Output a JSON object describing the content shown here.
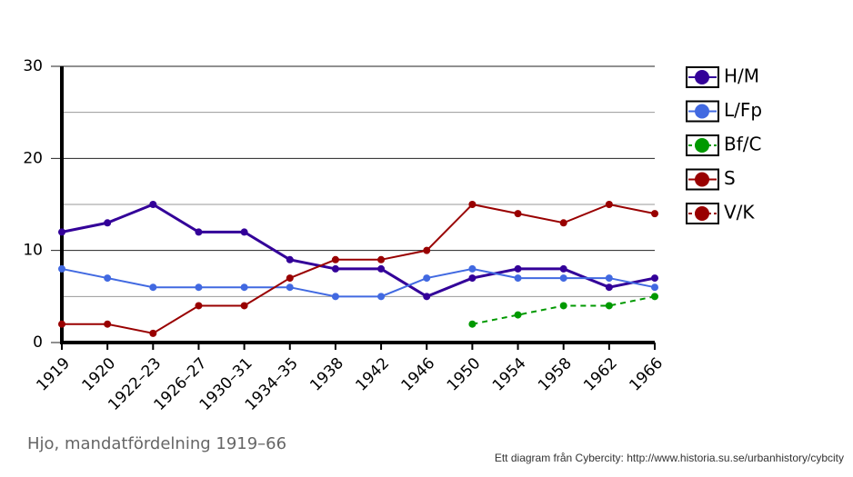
{
  "chart_data": {
    "type": "line",
    "title": "Hjo, mandatfördelning 1919–66",
    "source": "Ett diagram från Cybercity: http://www.historia.su.se/urbanhistory/cybcity",
    "categories": [
      "1919",
      "1920",
      "1922–23",
      "1926–27",
      "1930–31",
      "1934–35",
      "1938",
      "1942",
      "1946",
      "1950",
      "1954",
      "1958",
      "1962",
      "1966"
    ],
    "ylim": [
      0,
      30
    ],
    "yticks": [
      0,
      10,
      20,
      30
    ],
    "minor_yticks": [
      5,
      15,
      25
    ],
    "grid": true,
    "series": [
      {
        "name": "H/M",
        "color": "#330099",
        "dashed": false,
        "values": [
          12,
          13,
          15,
          12,
          12,
          9,
          8,
          8,
          5,
          7,
          8,
          8,
          6,
          7
        ]
      },
      {
        "name": "L/Fp",
        "color": "#4169e1",
        "dashed": false,
        "values": [
          8,
          7,
          6,
          6,
          6,
          6,
          5,
          5,
          7,
          8,
          7,
          7,
          7,
          6
        ]
      },
      {
        "name": "Bf/C",
        "color": "#009900",
        "dashed": true,
        "values": [
          null,
          null,
          null,
          null,
          null,
          null,
          null,
          null,
          null,
          2,
          3,
          4,
          4,
          5
        ]
      },
      {
        "name": "S",
        "color": "#990000",
        "dashed": false,
        "values": [
          2,
          2,
          1,
          4,
          4,
          7,
          9,
          9,
          10,
          15,
          14,
          13,
          15,
          14
        ]
      },
      {
        "name": "V/K",
        "color": "#990000",
        "dashed": true,
        "values": [
          null,
          null,
          null,
          null,
          null,
          null,
          null,
          null,
          null,
          null,
          null,
          null,
          null,
          null
        ]
      }
    ]
  }
}
